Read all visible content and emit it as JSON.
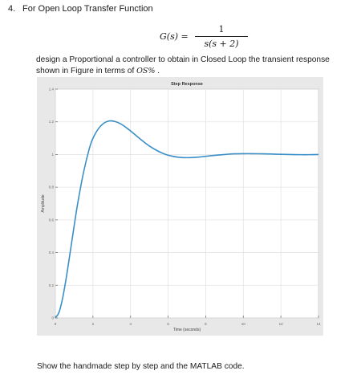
{
  "question": {
    "number": "4.",
    "title": "For Open Loop Transfer Function",
    "formula": {
      "lhs": "G(s) =",
      "numerator": "1",
      "denominator": "s(s + 2)"
    },
    "instruction_part1": "design a Proportional a controller to obtain in Closed Loop the transient response shown in Figure in terms of ",
    "instruction_os": "OS%",
    "instruction_part2": " .",
    "closing": "Show the handmade step by step and the MATLAB code."
  },
  "chart_data": {
    "type": "line",
    "title": "Step Response",
    "xlabel": "Time (seconds)",
    "ylabel": "Amplitude",
    "xlim": [
      0,
      14
    ],
    "ylim": [
      0,
      1.4
    ],
    "xticks": [
      0,
      2,
      4,
      6,
      8,
      10,
      12,
      14
    ],
    "yticks": [
      0,
      0.2,
      0.4,
      0.6,
      0.8,
      1,
      1.2,
      1.4
    ],
    "grid": true,
    "line_color": "#3a8fc8",
    "series": [
      {
        "x": [
          0,
          0.2,
          0.4,
          0.6,
          0.8,
          1.0,
          1.2,
          1.5,
          1.8,
          2.0,
          2.3,
          2.6,
          2.9,
          3.2,
          3.5,
          3.8,
          4.1,
          4.4,
          4.7,
          5.0,
          5.3,
          5.6,
          5.9,
          6.2,
          6.5,
          6.8,
          7.2,
          7.6,
          8.0,
          8.5,
          9.0,
          9.5,
          10.0,
          10.5,
          11.0,
          11.5,
          12.0,
          12.5,
          13.0,
          13.5,
          14.0
        ],
        "y": [
          0,
          0.036,
          0.129,
          0.26,
          0.41,
          0.563,
          0.708,
          0.891,
          1.033,
          1.099,
          1.159,
          1.193,
          1.206,
          1.201,
          1.186,
          1.162,
          1.135,
          1.106,
          1.078,
          1.052,
          1.031,
          1.013,
          0.999,
          0.99,
          0.984,
          0.981,
          0.981,
          0.984,
          0.989,
          0.995,
          1.0,
          1.004,
          1.005,
          1.005,
          1.004,
          1.003,
          1.001,
          1.0,
          0.999,
          0.999,
          1.0
        ]
      }
    ]
  }
}
